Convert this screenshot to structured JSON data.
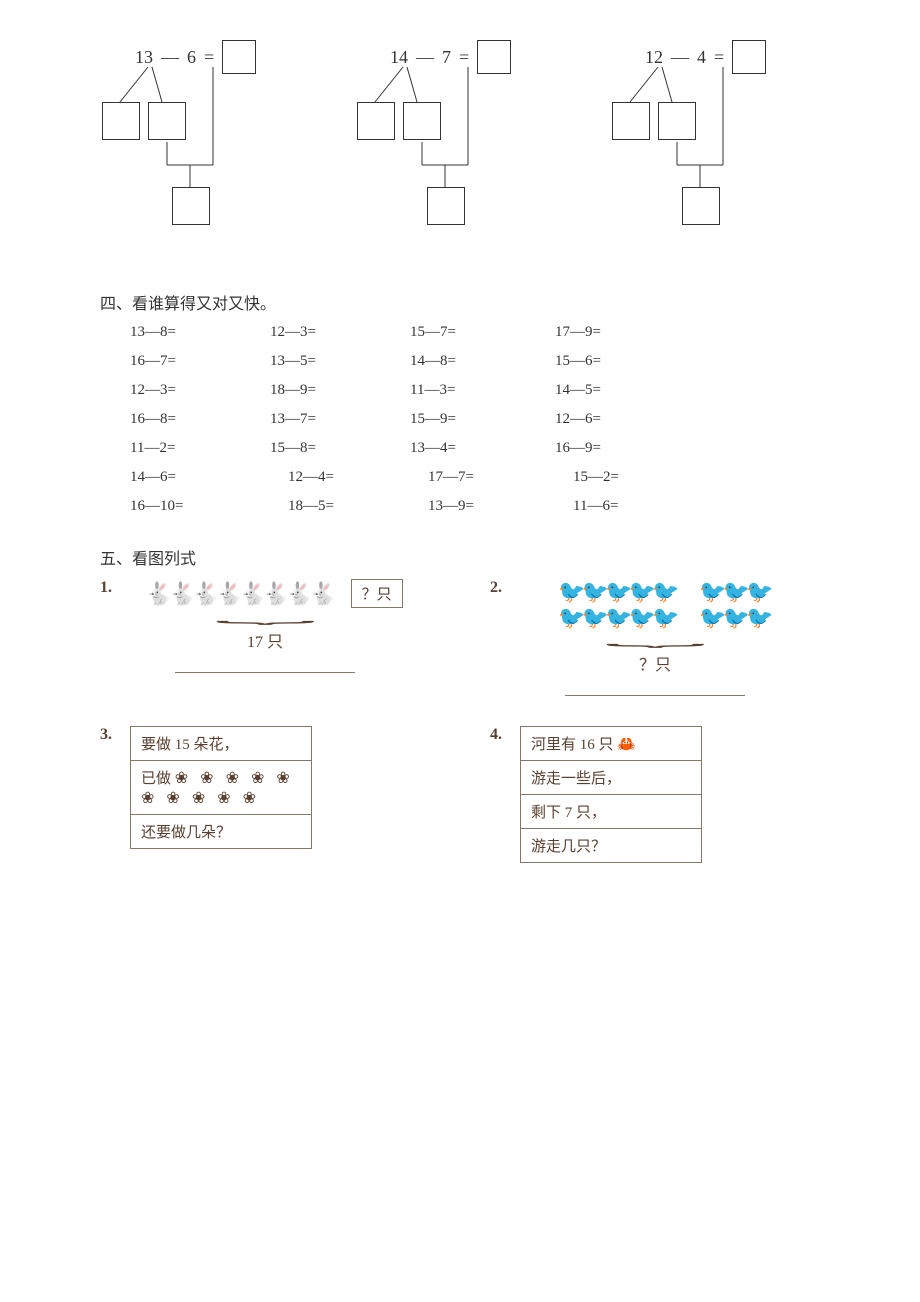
{
  "section3": {
    "problems": [
      {
        "a": "13",
        "op": "—",
        "b": "6",
        "eq": "="
      },
      {
        "a": "14",
        "op": "—",
        "b": "7",
        "eq": "="
      },
      {
        "a": "12",
        "op": "—",
        "b": "4",
        "eq": "="
      }
    ]
  },
  "section4": {
    "heading": "四、看谁算得又对又快。",
    "rows": [
      [
        "13—8=",
        "12—3=",
        "15—7=",
        "17—9="
      ],
      [
        "16—7=",
        "13—5=",
        "14—8=",
        "15—6="
      ],
      [
        "12—3=",
        "18—9=",
        "11—3=",
        "14—5="
      ],
      [
        "16—8=",
        "13—7=",
        "15—9=",
        "12—6="
      ],
      [
        "11—2=",
        "15—8=",
        "13—4=",
        "16—9="
      ],
      [
        "14—6=",
        "12—4=",
        "17—7=",
        "15—2="
      ],
      [
        "16—10=",
        "18—5=",
        "13—9=",
        "11—6="
      ]
    ]
  },
  "section5": {
    "heading": "五、看图列式",
    "p1": {
      "num": "1.",
      "total": "17 只",
      "unknown": "？只"
    },
    "p2": {
      "num": "2.",
      "unknown": "？只"
    },
    "p3": {
      "num": "3.",
      "line1": "要做 15 朵花，",
      "line2_label": "已做",
      "line3": "还要做几朵？"
    },
    "p4": {
      "num": "4.",
      "line1": "河里有 16 只",
      "line2": "游走一些后，",
      "line3": "剩下 7 只，",
      "line4": "游走几只？"
    }
  }
}
